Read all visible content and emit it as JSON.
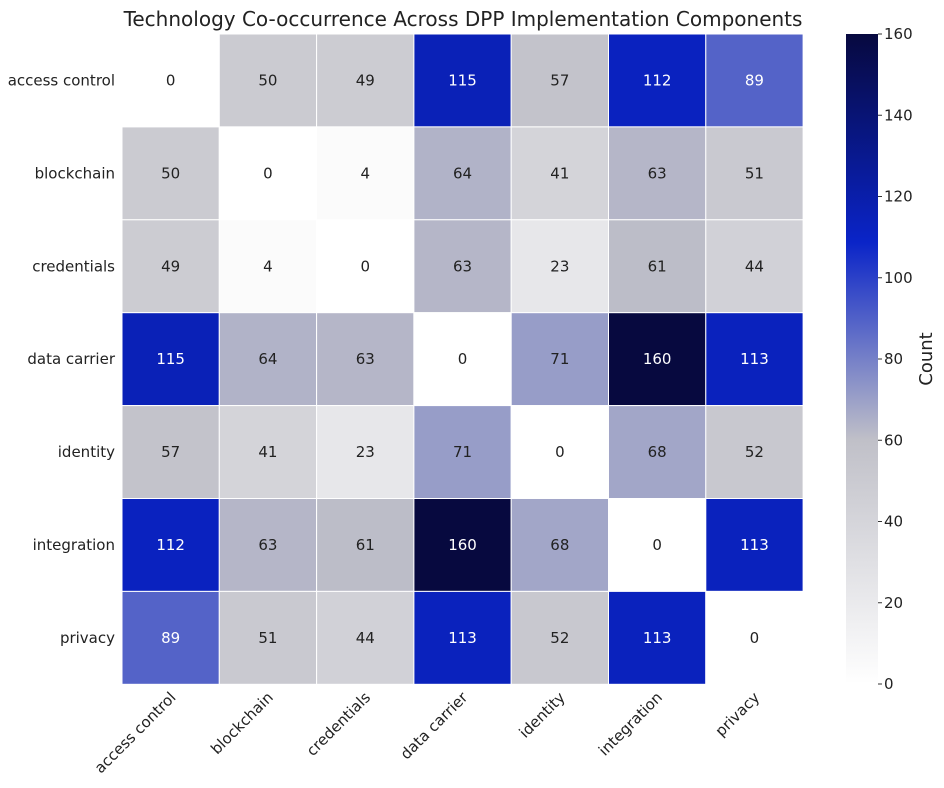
{
  "chart_data": {
    "type": "heatmap",
    "title": "Technology Co-occurrence Across DPP Implementation Components",
    "row_labels": [
      "access control",
      "blockchain",
      "credentials",
      "data carrier",
      "identity",
      "integration",
      "privacy"
    ],
    "col_labels": [
      "access control",
      "blockchain",
      "credentials",
      "data carrier",
      "identity",
      "integration",
      "privacy"
    ],
    "values": [
      [
        0,
        50,
        49,
        115,
        57,
        112,
        89
      ],
      [
        50,
        0,
        4,
        64,
        41,
        63,
        51
      ],
      [
        49,
        4,
        0,
        63,
        23,
        61,
        44
      ],
      [
        115,
        64,
        63,
        0,
        71,
        160,
        113
      ],
      [
        57,
        41,
        23,
        71,
        0,
        68,
        52
      ],
      [
        112,
        63,
        61,
        160,
        68,
        0,
        113
      ],
      [
        89,
        51,
        44,
        113,
        52,
        113,
        0
      ]
    ],
    "colorbar": {
      "label": "Count",
      "range": [
        0,
        160
      ],
      "ticks": [
        0,
        20,
        40,
        60,
        80,
        100,
        120,
        140,
        160
      ]
    },
    "colors": {
      "low": "#ffffff",
      "mid": "#c0c0c8",
      "high_mid": "#0a24c8",
      "high": "#07093f"
    }
  }
}
